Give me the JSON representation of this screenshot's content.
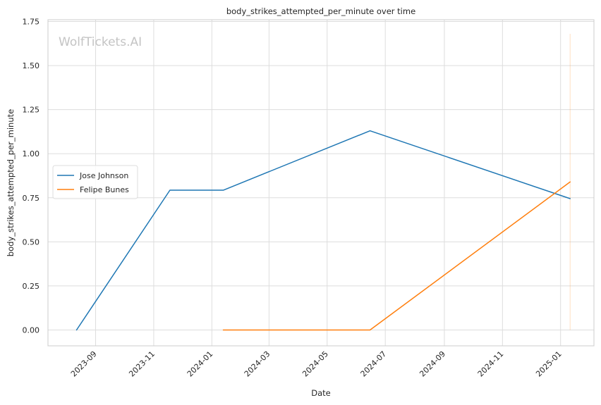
{
  "chart_data": {
    "type": "line",
    "title": "body_strikes_attempted_per_minute over time",
    "xlabel": "Date",
    "ylabel": "body_strikes_attempted_per_minute",
    "watermark": "WolfTickets.AI",
    "x_tick_labels": [
      "2023-09",
      "2023-11",
      "2024-01",
      "2024-03",
      "2024-05",
      "2024-07",
      "2024-09",
      "2024-11",
      "2025-01"
    ],
    "y_ticks": [
      0.0,
      0.25,
      0.5,
      0.75,
      1.0,
      1.25,
      1.5,
      1.75
    ],
    "y_tick_labels": [
      "0.00",
      "0.25",
      "0.50",
      "0.75",
      "1.00",
      "1.25",
      "1.50",
      "1.75"
    ],
    "xlim": [
      "2023-07-13",
      "2025-02-05"
    ],
    "ylim": [
      -0.09,
      1.76
    ],
    "grid": true,
    "legend_position": "center-left",
    "series": [
      {
        "name": "Jose Johnson",
        "color": "#1f77b4",
        "x": [
          "2023-08-12",
          "2023-11-18",
          "2024-01-13",
          "2024-06-15",
          "2025-01-11"
        ],
        "y": [
          0.0,
          0.793,
          0.793,
          1.13,
          0.745
        ]
      },
      {
        "name": "Felipe Bunes",
        "color": "#ff7f0e",
        "x": [
          "2024-01-13",
          "2024-06-15",
          "2025-01-11"
        ],
        "y": [
          0.0,
          0.0,
          0.84
        ]
      }
    ],
    "vertical_line": {
      "x": "2025-01-11",
      "y_range": [
        0.0,
        1.68
      ],
      "color": "#ff7f0e",
      "opacity": 0.25
    }
  }
}
